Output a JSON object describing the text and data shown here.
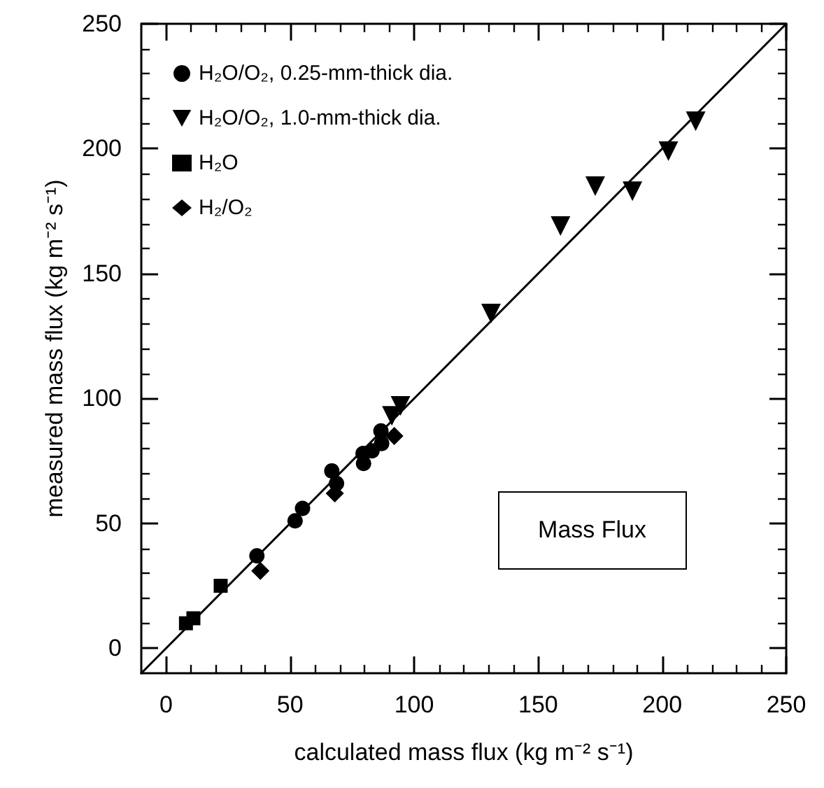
{
  "chart_data": {
    "type": "scatter",
    "xlabel": "calculated mass flux (kg m⁻² s⁻¹)",
    "ylabel": "measured mass flux (kg m⁻² s⁻¹)",
    "xlim": [
      -10,
      250
    ],
    "ylim": [
      -10,
      250
    ],
    "xticks": [
      0,
      50,
      100,
      150,
      200,
      250
    ],
    "yticks": [
      0,
      50,
      100,
      150,
      200,
      250
    ],
    "grid": false,
    "legend": "top left",
    "annotations": [
      "Mass Flux"
    ],
    "series": [
      {
        "name": "H₂O/O₂, 0.25-mm-thick dia.",
        "color": "#000000",
        "marker": "circle",
        "x": [
          36.6,
          52,
          55,
          66.8,
          68.7,
          79.6,
          79.4,
          83,
          86.6,
          86.9
        ],
        "values": [
          37,
          51,
          56,
          71,
          66,
          74,
          78,
          79,
          87,
          82
        ]
      },
      {
        "name": "H₂O/O₂, 1.0-mm-thick dia.",
        "color": "#000000",
        "marker": "triangle",
        "x": [
          91,
          94.5,
          131,
          159,
          173,
          188,
          202.5,
          213.5
        ],
        "values": [
          93,
          97,
          134,
          169,
          185,
          183,
          199,
          211
        ]
      },
      {
        "name": "H₂O",
        "color": "#000000",
        "marker": "square",
        "x": [
          8,
          11,
          22
        ],
        "values": [
          10,
          12,
          25
        ]
      },
      {
        "name": "H₂/O₂",
        "color": "#000000",
        "marker": "diamond",
        "x": [
          38,
          68,
          92
        ],
        "values": [
          31,
          62,
          85
        ]
      },
      {
        "type": "line",
        "color": "#000000",
        "marker": "none",
        "line_style": "solid",
        "x": [
          -10,
          250
        ],
        "values": [
          -10,
          250
        ]
      }
    ]
  }
}
